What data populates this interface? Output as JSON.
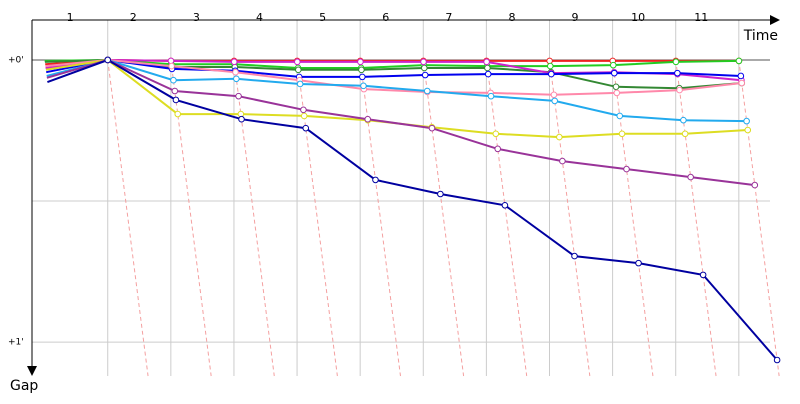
{
  "chart_data": {
    "type": "line",
    "x_label": "Time",
    "y_label": "Gap",
    "lap_labels": [
      "1",
      "2",
      "3",
      "4",
      "5",
      "6",
      "7",
      "8",
      "9",
      "10",
      "11"
    ],
    "x": [
      0,
      1,
      2,
      3,
      4,
      5,
      6,
      7,
      8,
      9,
      10,
      11
    ],
    "xlim": [
      -0.2,
      11.7
    ],
    "ylim": [
      -8.5,
      67.2
    ],
    "yticks": [
      {
        "value": 0,
        "label": "+0'"
      },
      {
        "value": 30,
        "label": null
      },
      {
        "value": 60,
        "label": "+1'"
      }
    ],
    "grid": true,
    "series": [
      {
        "color": "#ee2222",
        "values": [
          0.9,
          0,
          0.2,
          0.2,
          0.2,
          0.2,
          0.2,
          0.2,
          0.2,
          0.2,
          0.2,
          0.2
        ]
      },
      {
        "color": "#22cc22",
        "values": [
          0.2,
          0,
          0.9,
          0.9,
          1.7,
          1.7,
          1.1,
          1.3,
          1.3,
          1.1,
          0.4,
          0.2
        ]
      },
      {
        "color": "#338833",
        "values": [
          0.4,
          0,
          1.5,
          1.5,
          2.1,
          2.1,
          1.7,
          1.7,
          2.6,
          5.7,
          6.0,
          4.9
        ]
      },
      {
        "color": "#cc22cc",
        "values": [
          1.7,
          0,
          0.2,
          0.4,
          0.4,
          0.4,
          0.4,
          0.4,
          2.8,
          2.6,
          3.0,
          4.3
        ]
      },
      {
        "color": "#0000ee",
        "values": [
          2.6,
          0,
          1.9,
          2.3,
          3.6,
          3.6,
          3.2,
          3.0,
          3.0,
          2.8,
          2.8,
          3.4
        ]
      },
      {
        "color": "#ff88aa",
        "values": [
          1.3,
          0,
          1.3,
          2.6,
          4.3,
          6.2,
          6.8,
          7.0,
          7.4,
          7.0,
          6.4,
          4.9
        ]
      },
      {
        "color": "#22aaee",
        "values": [
          3.4,
          0,
          4.3,
          4.0,
          5.1,
          5.5,
          6.6,
          7.7,
          8.7,
          11.9,
          12.8,
          13.0
        ]
      },
      {
        "color": "#dddd22",
        "values": [
          2.1,
          0,
          11.5,
          11.5,
          11.9,
          12.8,
          14.3,
          15.7,
          16.4,
          15.7,
          15.7,
          14.9
        ]
      },
      {
        "color": "#993399",
        "values": [
          3.8,
          0,
          6.6,
          7.7,
          10.6,
          12.6,
          14.5,
          18.9,
          21.5,
          23.2,
          24.9,
          26.6
        ]
      },
      {
        "color": "#0000a0",
        "values": [
          4.7,
          0,
          8.5,
          12.6,
          14.5,
          25.5,
          28.5,
          30.9,
          41.7,
          43.2,
          45.7,
          63.8
        ]
      }
    ]
  }
}
